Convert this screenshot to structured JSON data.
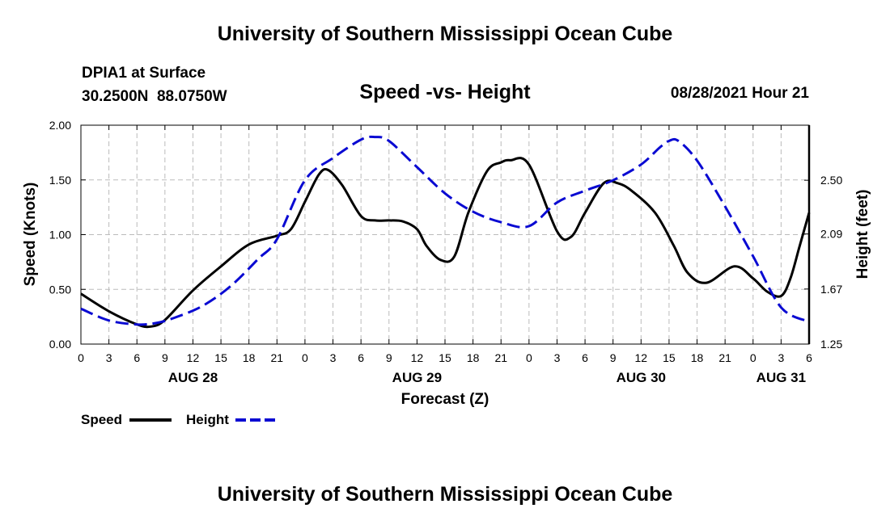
{
  "header": {
    "title": "University of Southern Mississippi Ocean Cube",
    "station": "DPIA1 at Surface",
    "coordinates": "30.2500N  88.0750W",
    "chart_title": "Speed -vs- Height",
    "datetime": "08/28/2021 Hour 21"
  },
  "footer": {
    "title": "University of Southern Mississippi Ocean Cube"
  },
  "legend": {
    "speed_label": "Speed",
    "height_label": "Height"
  },
  "colors": {
    "speed": "#000000",
    "height": "#0a0ad2",
    "grid": "#bbbbbb"
  },
  "chart_data": {
    "type": "line",
    "title": "Speed -vs- Height",
    "xlabel": "Forecast (Z)",
    "ylabel": "Speed (Knots)",
    "y2label": "Height (feet)",
    "xlim": [
      0,
      78
    ],
    "ylim": [
      0,
      2.0
    ],
    "y2lim": [
      1.25,
      2.92
    ],
    "grid": true,
    "x_ticks": [
      0,
      3,
      6,
      9,
      12,
      15,
      18,
      21,
      24,
      27,
      30,
      33,
      36,
      39,
      42,
      45,
      48,
      51,
      54,
      57,
      60,
      63,
      66,
      69,
      72,
      75,
      78
    ],
    "x_tick_labels": [
      "0",
      "3",
      "6",
      "9",
      "12",
      "15",
      "18",
      "21",
      "0",
      "3",
      "6",
      "9",
      "12",
      "15",
      "18",
      "21",
      "0",
      "3",
      "6",
      "9",
      "12",
      "15",
      "18",
      "21",
      "0",
      "3",
      "6"
    ],
    "date_labels": [
      {
        "label": "AUG 28",
        "x": 12
      },
      {
        "label": "AUG 29",
        "x": 36
      },
      {
        "label": "AUG 30",
        "x": 60
      },
      {
        "label": "AUG 31",
        "x": 75
      }
    ],
    "y_ticks": [
      0.0,
      0.5,
      1.0,
      1.5,
      2.0
    ],
    "y_tick_labels": [
      "0.00",
      "0.50",
      "1.00",
      "1.50",
      "2.00"
    ],
    "y2_ticks": [
      1.25,
      1.67,
      2.09,
      2.5
    ],
    "y2_tick_labels": [
      "1.25",
      "1.67",
      "2.09",
      "2.50"
    ],
    "series": [
      {
        "name": "Speed",
        "axis": "left",
        "style": "solid",
        "x": [
          0,
          3,
          6,
          7.5,
          9,
          12,
          15,
          18,
          21,
          22.5,
          24,
          25.5,
          26.5,
          28,
          30,
          31.5,
          33,
          34.5,
          36,
          37,
          38.5,
          40,
          41.5,
          43.5,
          45,
          46,
          48,
          51,
          52.5,
          54,
          56,
          57.5,
          59,
          61.5,
          63.5,
          65,
          67,
          70,
          72,
          73.5,
          75,
          76,
          77,
          78
        ],
        "values": [
          0.46,
          0.3,
          0.18,
          0.16,
          0.22,
          0.49,
          0.71,
          0.91,
          0.99,
          1.05,
          1.3,
          1.55,
          1.59,
          1.45,
          1.17,
          1.13,
          1.13,
          1.12,
          1.05,
          0.9,
          0.77,
          0.8,
          1.2,
          1.58,
          1.66,
          1.68,
          1.64,
          1.03,
          0.98,
          1.2,
          1.47,
          1.47,
          1.4,
          1.2,
          0.9,
          0.65,
          0.56,
          0.71,
          0.6,
          0.48,
          0.44,
          0.6,
          0.9,
          1.2
        ]
      },
      {
        "name": "Height",
        "axis": "right",
        "style": "dashed",
        "x": [
          0,
          3,
          6,
          8,
          10,
          13,
          16,
          19,
          21,
          24,
          27,
          30,
          31.5,
          33,
          36,
          39,
          42,
          45,
          48,
          51,
          54,
          57,
          60,
          62,
          63,
          64,
          66,
          69,
          72,
          75,
          78
        ],
        "values": [
          1.52,
          1.43,
          1.4,
          1.41,
          1.45,
          1.54,
          1.69,
          1.9,
          2.05,
          2.5,
          2.67,
          2.81,
          2.83,
          2.8,
          2.6,
          2.4,
          2.26,
          2.18,
          2.15,
          2.33,
          2.42,
          2.5,
          2.62,
          2.75,
          2.8,
          2.8,
          2.65,
          2.3,
          1.92,
          1.53,
          1.42
        ]
      }
    ]
  }
}
